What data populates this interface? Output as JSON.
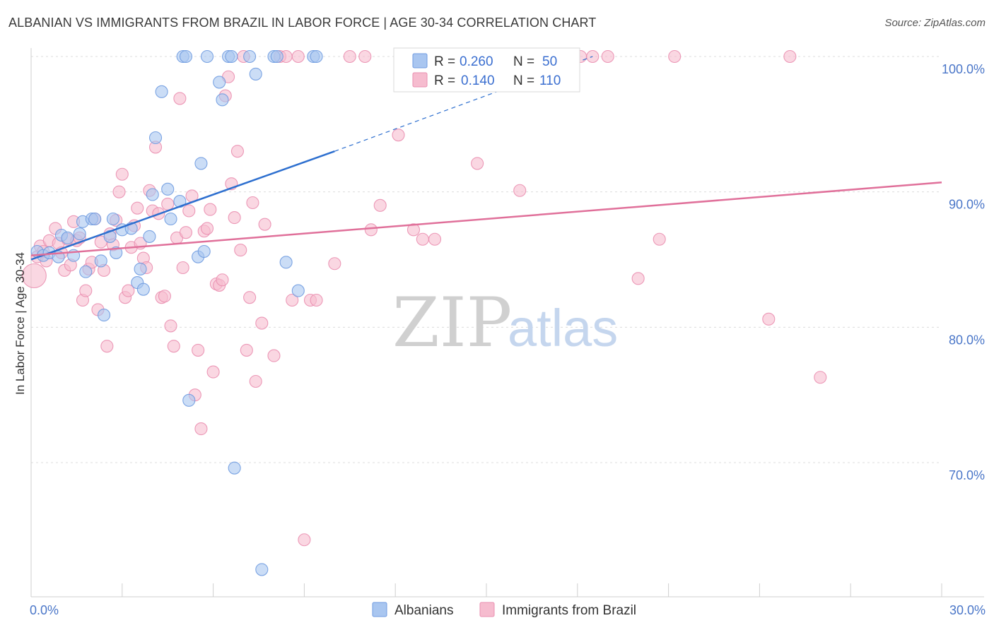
{
  "header": {
    "title": "ALBANIAN VS IMMIGRANTS FROM BRAZIL IN LABOR FORCE | AGE 30-34 CORRELATION CHART",
    "source": "Source: ZipAtlas.com"
  },
  "watermark": {
    "zip": "ZIP",
    "atlas": "atlas"
  },
  "legend_top": {
    "rows": [
      {
        "r_label": "R = ",
        "r_value": "0.260",
        "n_label": "N = ",
        "n_value": "50"
      },
      {
        "r_label": "R = ",
        "r_value": "0.140",
        "n_label": "N = ",
        "n_value": "110"
      }
    ]
  },
  "legend_bottom": {
    "items": [
      "Albanians",
      "Immigrants from Brazil"
    ]
  },
  "colors": {
    "albanians_fill": "#a9c6f0",
    "albanians_stroke": "#6f9be0",
    "albanians_line": "#2d6fcf",
    "brazil_fill": "#f6bccf",
    "brazil_stroke": "#ea8fb0",
    "brazil_line": "#e0709a",
    "grid": "#dcdcdc",
    "axis_text": "#4a76c8"
  },
  "chart_data": {
    "type": "scatter",
    "title": "ALBANIAN VS IMMIGRANTS FROM BRAZIL IN LABOR FORCE | AGE 30-34 CORRELATION CHART",
    "ylabel": "In Labor Force | Age 30-34",
    "xlim": [
      0,
      30
    ],
    "ylim": [
      61,
      102
    ],
    "x_ticks": [
      0,
      3,
      6,
      9,
      12,
      15,
      18,
      21,
      24,
      27,
      30
    ],
    "x_tick_labels": [
      "0.0%",
      "",
      "",
      "",
      "",
      "",
      "",
      "",
      "",
      "",
      "30.0%"
    ],
    "y_ticks": [
      70,
      80,
      90,
      100
    ],
    "y_tick_labels": [
      "70.0%",
      "80.0%",
      "90.0%",
      "100.0%"
    ],
    "grid": true,
    "series": [
      {
        "name": "Albanians",
        "R": 0.26,
        "N": 50,
        "trend": {
          "x": [
            0,
            10
          ],
          "y": [
            85.0,
            93.0
          ],
          "dashed_to": {
            "x": 18.5,
            "y": 100.0
          }
        },
        "points": [
          [
            0.2,
            85.6
          ],
          [
            0.4,
            85.3
          ],
          [
            0.6,
            85.5
          ],
          [
            0.9,
            85.2
          ],
          [
            1.0,
            86.8
          ],
          [
            1.2,
            86.6
          ],
          [
            1.4,
            85.3
          ],
          [
            1.6,
            86.9
          ],
          [
            1.7,
            87.8
          ],
          [
            1.8,
            84.1
          ],
          [
            2.0,
            88.0
          ],
          [
            2.1,
            88.0
          ],
          [
            2.3,
            84.9
          ],
          [
            2.4,
            80.9
          ],
          [
            2.6,
            86.7
          ],
          [
            2.8,
            85.5
          ],
          [
            2.7,
            88.0
          ],
          [
            3.0,
            87.2
          ],
          [
            3.3,
            87.3
          ],
          [
            3.5,
            83.3
          ],
          [
            3.6,
            84.3
          ],
          [
            3.7,
            82.8
          ],
          [
            3.9,
            86.7
          ],
          [
            4.0,
            89.8
          ],
          [
            4.1,
            94.0
          ],
          [
            4.3,
            97.4
          ],
          [
            4.5,
            90.2
          ],
          [
            4.6,
            88.0
          ],
          [
            4.9,
            89.3
          ],
          [
            5.0,
            100.0
          ],
          [
            5.1,
            100.0
          ],
          [
            5.2,
            74.6
          ],
          [
            5.5,
            85.2
          ],
          [
            5.6,
            92.1
          ],
          [
            5.7,
            85.6
          ],
          [
            5.8,
            100.0
          ],
          [
            6.2,
            98.1
          ],
          [
            6.3,
            96.8
          ],
          [
            6.5,
            100.0
          ],
          [
            6.6,
            100.0
          ],
          [
            6.7,
            69.6
          ],
          [
            7.2,
            100.0
          ],
          [
            7.4,
            98.7
          ],
          [
            7.6,
            62.1
          ],
          [
            8.0,
            100.0
          ],
          [
            8.1,
            100.0
          ],
          [
            8.4,
            84.8
          ],
          [
            8.8,
            82.7
          ],
          [
            9.3,
            100.0
          ],
          [
            9.4,
            100.0
          ]
        ]
      },
      {
        "name": "Immigrants from Brazil",
        "R": 0.14,
        "N": 110,
        "trend": {
          "x": [
            0,
            30
          ],
          "y": [
            85.3,
            90.7
          ]
        },
        "points": [
          [
            0.1,
            83.8
          ],
          [
            0.2,
            85.2
          ],
          [
            0.3,
            86.0
          ],
          [
            0.4,
            85.6
          ],
          [
            0.5,
            84.9
          ],
          [
            0.6,
            86.4
          ],
          [
            0.8,
            87.3
          ],
          [
            0.9,
            86.2
          ],
          [
            1.0,
            85.5
          ],
          [
            1.1,
            84.2
          ],
          [
            1.2,
            86.5
          ],
          [
            1.3,
            84.6
          ],
          [
            1.4,
            87.8
          ],
          [
            1.5,
            86.4
          ],
          [
            1.6,
            86.6
          ],
          [
            1.7,
            82.0
          ],
          [
            1.8,
            82.7
          ],
          [
            1.9,
            84.3
          ],
          [
            2.0,
            84.8
          ],
          [
            2.1,
            88.0
          ],
          [
            2.2,
            81.3
          ],
          [
            2.3,
            86.3
          ],
          [
            2.4,
            84.2
          ],
          [
            2.5,
            78.6
          ],
          [
            2.6,
            86.9
          ],
          [
            2.7,
            86.1
          ],
          [
            2.8,
            87.9
          ],
          [
            2.9,
            90.0
          ],
          [
            3.0,
            91.3
          ],
          [
            3.1,
            82.2
          ],
          [
            3.2,
            82.7
          ],
          [
            3.3,
            85.9
          ],
          [
            3.4,
            87.5
          ],
          [
            3.5,
            88.8
          ],
          [
            3.6,
            86.2
          ],
          [
            3.7,
            85.1
          ],
          [
            3.8,
            84.4
          ],
          [
            3.9,
            90.1
          ],
          [
            4.0,
            88.6
          ],
          [
            4.1,
            93.3
          ],
          [
            4.2,
            88.4
          ],
          [
            4.3,
            82.2
          ],
          [
            4.4,
            82.3
          ],
          [
            4.5,
            89.1
          ],
          [
            4.6,
            80.1
          ],
          [
            4.7,
            78.6
          ],
          [
            4.8,
            86.6
          ],
          [
            4.9,
            96.9
          ],
          [
            5.0,
            84.4
          ],
          [
            5.1,
            87.0
          ],
          [
            5.2,
            88.6
          ],
          [
            5.3,
            89.7
          ],
          [
            5.4,
            75.0
          ],
          [
            5.5,
            78.3
          ],
          [
            5.6,
            72.5
          ],
          [
            5.7,
            87.1
          ],
          [
            5.8,
            87.3
          ],
          [
            5.9,
            88.7
          ],
          [
            6.0,
            76.7
          ],
          [
            6.1,
            83.2
          ],
          [
            6.2,
            83.1
          ],
          [
            6.3,
            83.5
          ],
          [
            6.4,
            97.1
          ],
          [
            6.5,
            98.5
          ],
          [
            6.6,
            90.6
          ],
          [
            6.7,
            88.1
          ],
          [
            6.8,
            93.0
          ],
          [
            6.9,
            85.7
          ],
          [
            7.0,
            100.0
          ],
          [
            7.1,
            78.3
          ],
          [
            7.2,
            82.2
          ],
          [
            7.3,
            89.2
          ],
          [
            7.4,
            76.0
          ],
          [
            7.6,
            80.3
          ],
          [
            7.7,
            87.6
          ],
          [
            8.0,
            77.9
          ],
          [
            8.2,
            100.0
          ],
          [
            8.4,
            100.0
          ],
          [
            8.6,
            82.0
          ],
          [
            8.8,
            100.0
          ],
          [
            9.0,
            64.3
          ],
          [
            9.2,
            82.0
          ],
          [
            9.4,
            82.0
          ],
          [
            10.0,
            84.7
          ],
          [
            10.5,
            100.0
          ],
          [
            11.0,
            100.0
          ],
          [
            11.2,
            87.2
          ],
          [
            11.5,
            89.0
          ],
          [
            12.1,
            94.2
          ],
          [
            12.6,
            87.2
          ],
          [
            12.9,
            86.5
          ],
          [
            13.3,
            86.5
          ],
          [
            14.7,
            92.1
          ],
          [
            15.2,
            100.0
          ],
          [
            15.8,
            99.5
          ],
          [
            16.1,
            90.1
          ],
          [
            16.6,
            100.0
          ],
          [
            16.9,
            100.0
          ],
          [
            17.0,
            100.0
          ],
          [
            17.3,
            100.0
          ],
          [
            17.6,
            100.0
          ],
          [
            18.1,
            100.0
          ],
          [
            18.5,
            100.0
          ],
          [
            19.0,
            100.0
          ],
          [
            20.0,
            83.6
          ],
          [
            20.7,
            86.5
          ],
          [
            21.2,
            100.0
          ],
          [
            24.3,
            80.6
          ],
          [
            25.0,
            100.0
          ],
          [
            26.0,
            76.3
          ]
        ]
      }
    ]
  }
}
